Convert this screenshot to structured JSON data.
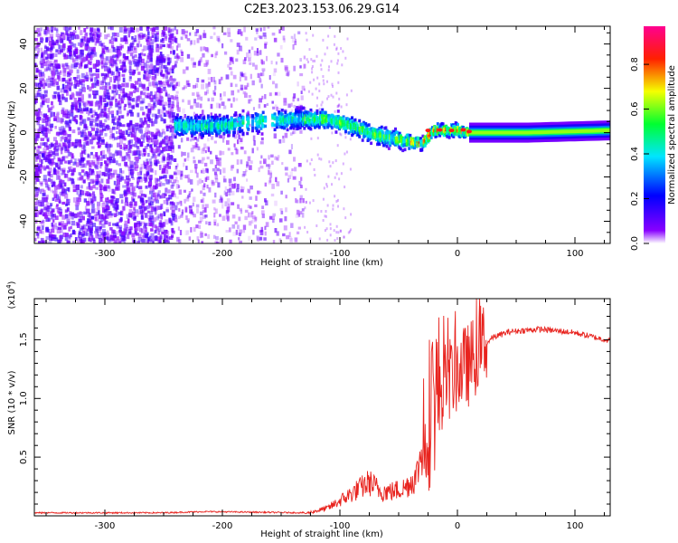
{
  "figure_title": "C2E3.2023.153.06.29.G14",
  "chart_data": [
    {
      "type": "heatmap",
      "name": "spectrogram",
      "xlabel": "Height of straight line (km)",
      "ylabel": "Frequency (Hz)",
      "xlim": [
        -360,
        130
      ],
      "ylim": [
        -50,
        48
      ],
      "xticks": [
        -300,
        -200,
        -100,
        0,
        100
      ],
      "yticks": [
        -40,
        -20,
        0,
        20,
        40
      ],
      "colorbar": {
        "label": "Normalized spectral amplitude",
        "range": [
          0,
          0.97
        ],
        "ticks": [
          0.0,
          0.2,
          0.4,
          0.6,
          0.8
        ],
        "tick_labels": [
          "0.0",
          "0.2",
          "0.4",
          "0.6",
          "0.8"
        ],
        "colormap": [
          "#ffffff",
          "#7f00ff",
          "#0000ff",
          "#00ffff",
          "#00ff00",
          "#ffff00",
          "#ff0000",
          "#ff00aa"
        ]
      },
      "regions": {
        "noise_dense_x": [
          -360,
          -240
        ],
        "noise_sparse_x": [
          -240,
          -130
        ],
        "signal_start_x": -240,
        "signal_strong_x": [
          10,
          130
        ]
      },
      "signal_ridge": [
        {
          "x": -240,
          "f": 3
        },
        {
          "x": -200,
          "f": 3
        },
        {
          "x": -170,
          "f": 5
        },
        {
          "x": -140,
          "f": 6
        },
        {
          "x": -110,
          "f": 6
        },
        {
          "x": -90,
          "f": 3
        },
        {
          "x": -70,
          "f": -1
        },
        {
          "x": -50,
          "f": -3
        },
        {
          "x": -30,
          "f": -5
        },
        {
          "x": -20,
          "f": 1
        },
        {
          "x": 0,
          "f": 1
        },
        {
          "x": 10,
          "f": 0
        },
        {
          "x": 60,
          "f": 0
        },
        {
          "x": 130,
          "f": 1
        }
      ]
    },
    {
      "type": "line",
      "name": "snr",
      "xlabel": "Height of straight line (km)",
      "ylabel": "SNR (10 * v/v)",
      "ylabel_scale": "(x10",
      "ylabel_exp": "4",
      "xlim": [
        -360,
        130
      ],
      "ylim": [
        0,
        1.85
      ],
      "xticks": [
        -300,
        -200,
        -100,
        0,
        100
      ],
      "yticks": [
        0.5,
        1.0,
        1.5
      ],
      "ytick_labels": [
        "0.5",
        "1.0",
        "1.5"
      ],
      "color": "#e8231e",
      "series_envelope": [
        {
          "x": -360,
          "y": 0.02
        },
        {
          "x": -250,
          "y": 0.02
        },
        {
          "x": -215,
          "y": 0.03
        },
        {
          "x": -130,
          "y": 0.02
        },
        {
          "x": -110,
          "y": 0.07
        },
        {
          "x": -90,
          "y": 0.2
        },
        {
          "x": -75,
          "y": 0.3
        },
        {
          "x": -65,
          "y": 0.22
        },
        {
          "x": -55,
          "y": 0.22
        },
        {
          "x": -45,
          "y": 0.25
        },
        {
          "x": -35,
          "y": 0.35
        },
        {
          "x": -28,
          "y": 0.7
        },
        {
          "x": -20,
          "y": 0.95
        },
        {
          "x": -10,
          "y": 1.1
        },
        {
          "x": 0,
          "y": 1.2
        },
        {
          "x": 10,
          "y": 1.25
        },
        {
          "x": 20,
          "y": 1.42
        },
        {
          "x": 30,
          "y": 1.52
        },
        {
          "x": 45,
          "y": 1.57
        },
        {
          "x": 70,
          "y": 1.59
        },
        {
          "x": 100,
          "y": 1.56
        },
        {
          "x": 130,
          "y": 1.49
        }
      ]
    }
  ]
}
